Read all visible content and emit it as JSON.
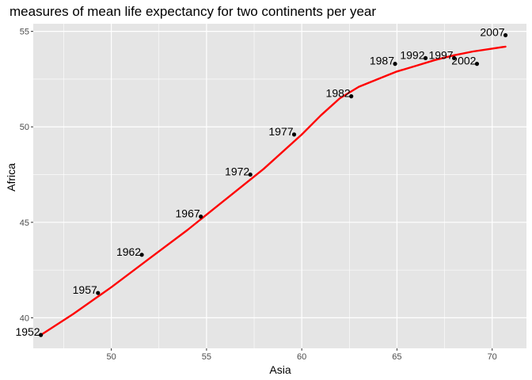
{
  "chart_data": {
    "type": "scatter",
    "title": "measures of mean life expectancy for two continents per year",
    "xlabel": "Asia",
    "ylabel": "Africa",
    "xlim": [
      45.9,
      71.8
    ],
    "ylim": [
      38.4,
      55.4
    ],
    "xticks": [
      50,
      55,
      60,
      65,
      70
    ],
    "yticks": [
      40,
      45,
      50,
      55
    ],
    "grid": true,
    "background": "#e5e5e5",
    "gridline_color": "#ffffff",
    "point_color": "#000000",
    "smooth_color": "#ff0000",
    "points": [
      {
        "label": "1952",
        "x": 46.3,
        "y": 39.1
      },
      {
        "label": "1957",
        "x": 49.3,
        "y": 41.3
      },
      {
        "label": "1962",
        "x": 51.6,
        "y": 43.3
      },
      {
        "label": "1967",
        "x": 54.7,
        "y": 45.3
      },
      {
        "label": "1972",
        "x": 57.3,
        "y": 47.5
      },
      {
        "label": "1977",
        "x": 59.6,
        "y": 49.6
      },
      {
        "label": "1982",
        "x": 62.6,
        "y": 51.6
      },
      {
        "label": "1987",
        "x": 64.9,
        "y": 53.3
      },
      {
        "label": "1992",
        "x": 66.5,
        "y": 53.6
      },
      {
        "label": "1997",
        "x": 68.0,
        "y": 53.6
      },
      {
        "label": "2002",
        "x": 69.2,
        "y": 53.3
      },
      {
        "label": "2007",
        "x": 70.7,
        "y": 54.8
      }
    ],
    "smooth_line": [
      {
        "x": 46.3,
        "y": 39.1
      },
      {
        "x": 48.0,
        "y": 40.2
      },
      {
        "x": 50.0,
        "y": 41.6
      },
      {
        "x": 52.0,
        "y": 43.1
      },
      {
        "x": 54.0,
        "y": 44.6
      },
      {
        "x": 56.0,
        "y": 46.2
      },
      {
        "x": 58.0,
        "y": 47.8
      },
      {
        "x": 60.0,
        "y": 49.6
      },
      {
        "x": 61.0,
        "y": 50.6
      },
      {
        "x": 62.0,
        "y": 51.5
      },
      {
        "x": 63.0,
        "y": 52.1
      },
      {
        "x": 64.0,
        "y": 52.5
      },
      {
        "x": 65.0,
        "y": 52.9
      },
      {
        "x": 66.0,
        "y": 53.2
      },
      {
        "x": 67.0,
        "y": 53.5
      },
      {
        "x": 68.0,
        "y": 53.75
      },
      {
        "x": 69.0,
        "y": 53.95
      },
      {
        "x": 70.0,
        "y": 54.1
      },
      {
        "x": 70.7,
        "y": 54.2
      }
    ]
  }
}
